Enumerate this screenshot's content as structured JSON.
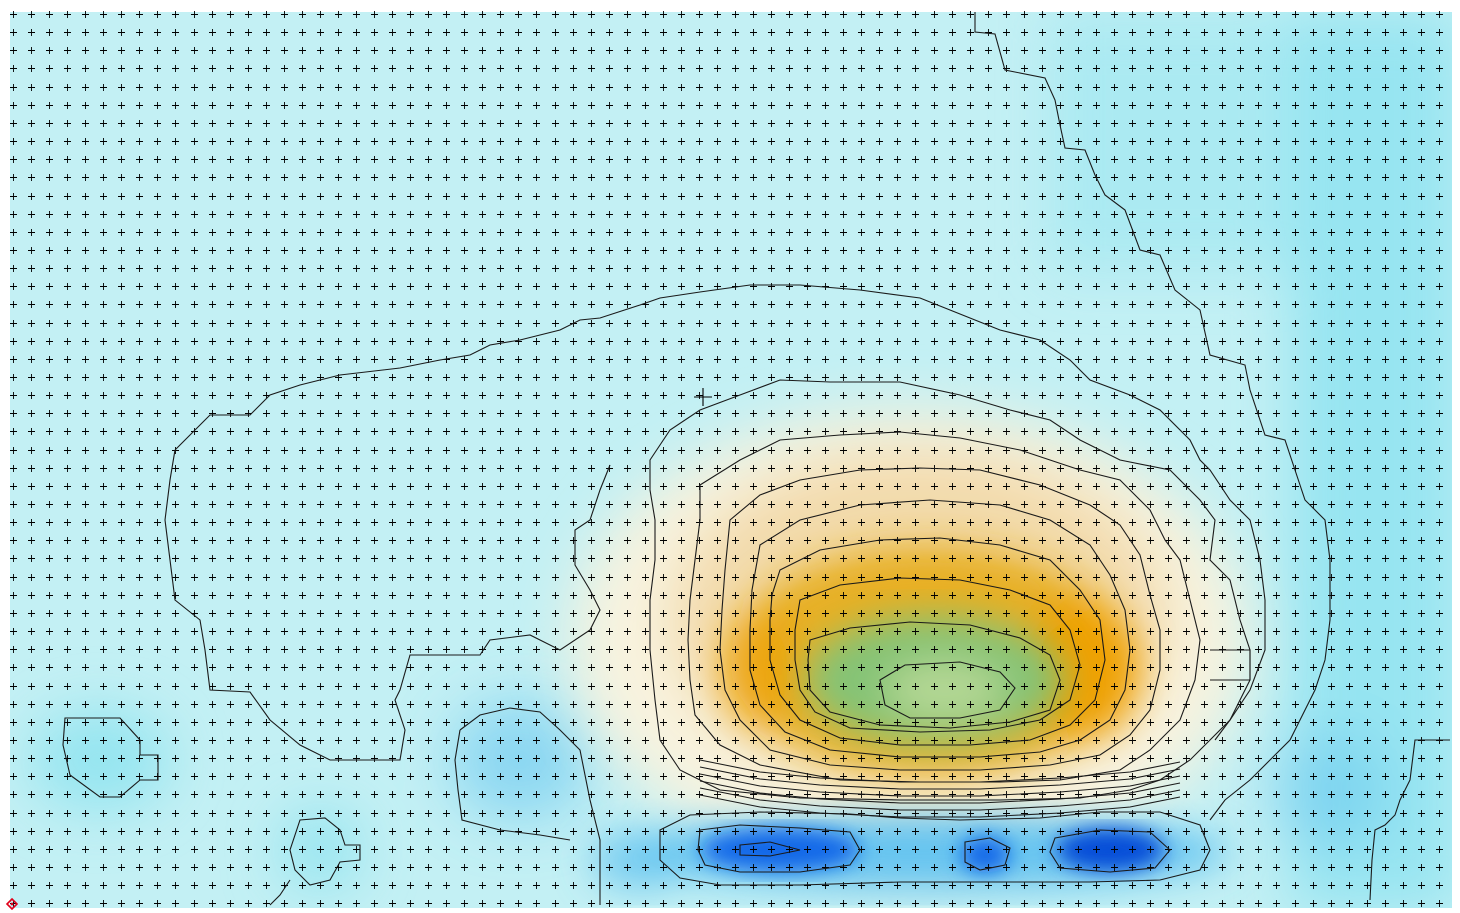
{
  "map": {
    "view_type": "heatmap-contour-overlay",
    "grid_markers": "plus-crosses",
    "colors": {
      "base_low": "#c3f0f4",
      "cold_edge": "#8fe3f0",
      "light_blue": "#5fc2f0",
      "deep_blue": "#0a63e8",
      "deepest_blue": "#0047d6",
      "cream": "#fbf2dd",
      "tan": "#f1d9a8",
      "amber": "#e7ae1c",
      "orange": "#f0a000",
      "green": "#7fc47a",
      "pale_green": "#b7d896",
      "contour_line": "#1a1a1a",
      "marker": "#000000",
      "origin_marker": "#e0001a"
    },
    "origin_marker_icon": "red-diamond-icon",
    "cursor_icon": "crosshair-icon"
  }
}
